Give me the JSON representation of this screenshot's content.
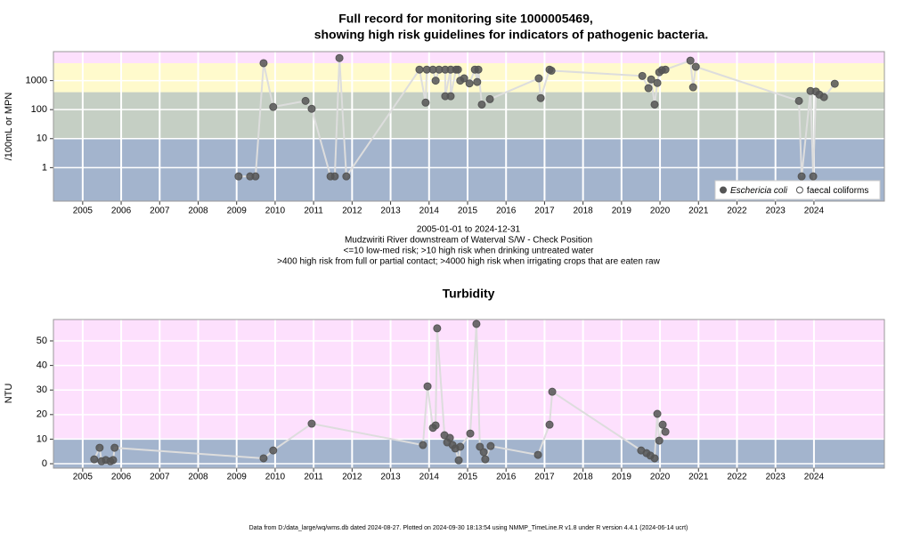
{
  "chart_data": [
    {
      "type": "scatter-line",
      "title": [
        "Full record for monitoring site 1000005469,",
        "showing high risk guidelines for indicators of pathogenic bacteria."
      ],
      "y_label": "/100mL or MPN",
      "notes": [
        "2005-01-01 to 2024-12-31",
        "Mudzwiriti River downstream of Waterval S/W - Check Position",
        "<=10 low-med risk; >10 high risk when drinking untreated water",
        ">400 high risk from full or partial contact; >4000 high risk when irrigating crops that are eaten raw"
      ],
      "xlim": [
        2004.24,
        2025.83
      ],
      "xticks": [
        2005,
        2006,
        2007,
        2008,
        2009,
        2010,
        2011,
        2012,
        2013,
        2014,
        2015,
        2016,
        2017,
        2018,
        2019,
        2020,
        2021,
        2022,
        2023,
        2024
      ],
      "ylim": [
        0.07,
        10000
      ],
      "ylog": true,
      "yticks": [
        1,
        10,
        100,
        1000
      ],
      "grid": true,
      "bands": [
        {
          "upto": 10,
          "color": "#a3b4cd"
        },
        {
          "upto": 400,
          "color": "#c5cfc4"
        },
        {
          "upto": 4000,
          "color": "#fffacc"
        },
        {
          "color": "#fde0fd"
        }
      ],
      "legend": "bottom-right",
      "line_color": "#dddddd",
      "series": [
        {
          "name": "Eschericia coli",
          "color": "#555555",
          "marker": "filled",
          "x": [
            2009.05,
            2009.35,
            2009.49,
            2009.7,
            2009.95,
            2010.79,
            2010.95,
            2011.44,
            2011.55,
            2011.67,
            2011.85,
            2013.75,
            2013.91,
            2013.94,
            2014.1,
            2014.17,
            2014.26,
            2014.42,
            2014.42,
            2014.56,
            2014.56,
            2014.7,
            2014.75,
            2014.81,
            2014.91,
            2015.05,
            2015.19,
            2015.25,
            2015.28,
            2015.37,
            2015.58,
            2016.85,
            2016.9,
            2017.13,
            2017.18,
            2019.54,
            2019.7,
            2019.77,
            2019.86,
            2019.93,
            2019.98,
            2020.05,
            2020.14,
            2020.79,
            2020.86,
            2020.93,
            2023.61,
            2023.68,
            2023.91,
            2023.98,
            2024.05,
            2024.14,
            2024.26,
            2024.54
          ],
          "values": [
            0.5,
            0.5,
            0.5,
            4000,
            124,
            200,
            107,
            0.5,
            0.5,
            6000,
            0.5,
            2400,
            175,
            2400,
            2400,
            1000,
            2400,
            2400,
            290,
            2400,
            290,
            2400,
            2400,
            1000,
            1200,
            800,
            2400,
            900,
            2400,
            150,
            230,
            1200,
            250,
            2400,
            2200,
            1450,
            550,
            1100,
            150,
            830,
            1950,
            2300,
            2400,
            4900,
            590,
            3000,
            200,
            0.5,
            440,
            0.5,
            420,
            330,
            270,
            780
          ]
        },
        {
          "name": "faecal coliforms",
          "color": "#555555",
          "marker": "open",
          "x": [],
          "values": []
        }
      ]
    },
    {
      "type": "scatter-line",
      "title": "Turbidity",
      "y_label": "NTU",
      "xlim": [
        2004.24,
        2025.83
      ],
      "xticks": [
        2005,
        2006,
        2007,
        2008,
        2009,
        2010,
        2011,
        2012,
        2013,
        2014,
        2015,
        2016,
        2017,
        2018,
        2019,
        2020,
        2021,
        2022,
        2023,
        2024
      ],
      "ylim": [
        -1.8,
        58.7
      ],
      "yticks": [
        0,
        10,
        20,
        30,
        40,
        50
      ],
      "grid": true,
      "bands": [
        {
          "upto": 10,
          "color": "#a3b4cd"
        },
        {
          "color": "#fde0fd"
        }
      ],
      "line_color": "#dddddd",
      "series": [
        {
          "color": "#555555",
          "marker": "filled",
          "x": [
            2005.3,
            2005.44,
            2005.49,
            2005.6,
            2005.72,
            2005.79,
            2005.83,
            2009.7,
            2009.95,
            2010.95,
            2013.84,
            2013.96,
            2014.1,
            2014.17,
            2014.21,
            2014.4,
            2014.47,
            2014.54,
            2014.61,
            2014.68,
            2014.77,
            2014.81,
            2015.07,
            2015.23,
            2015.32,
            2015.42,
            2015.46,
            2015.6,
            2016.83,
            2017.13,
            2017.2,
            2019.51,
            2019.65,
            2019.75,
            2019.86,
            2019.93,
            2019.98,
            2020.07,
            2020.14
          ],
          "values": [
            1.8,
            6.5,
            1.0,
            1.5,
            1.0,
            1.5,
            6.5,
            2.2,
            5.4,
            16.3,
            7.6,
            31.5,
            14.6,
            15.6,
            55.1,
            11.6,
            8.7,
            10.5,
            7.6,
            6.2,
            1.4,
            6.9,
            12.3,
            56.9,
            6.9,
            4.7,
            1.8,
            7.2,
            3.6,
            15.9,
            29.3,
            5.4,
            4.3,
            3.3,
            2.2,
            20.3,
            9.4,
            15.9,
            13.0
          ]
        }
      ]
    }
  ],
  "footer": "Data from D:/data_large/wq/wms.db dated 2024-08-27. Plotted on 2024-09-30 18:13:54 using NMMP_TimeLine.R v1.8 under R version 4.4.1 (2024-06-14 ucrt)"
}
